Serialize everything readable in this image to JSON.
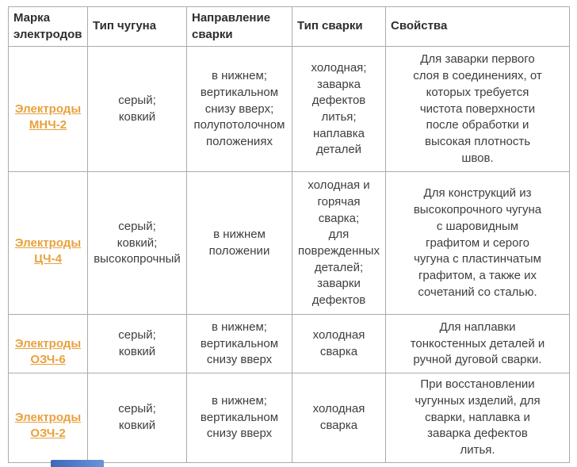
{
  "table": {
    "headers": [
      "Марка электродов",
      "Тип чугуна",
      "Направление сварки",
      "Тип сварки",
      "Свойства"
    ],
    "rows": [
      {
        "brand": "Электроды\nМНЧ-2",
        "iron_type": "серый;\nковкий",
        "direction": "в нижнем;\nвертикальном\nснизу вверх;\nполупотолочном\nположениях",
        "welding_type": "холодная;\nзаварка\nдефектов\nлитья;\nнаплавка\nдеталей",
        "properties": "Для заварки первого\nслоя в соединениях, от\nкоторых требуется\nчистота поверхности\nпосле обработки и\nвысокая плотность\nшвов."
      },
      {
        "brand": "Электроды\nЦЧ-4",
        "iron_type": "серый;\nковкий;\nвысокопрочный",
        "direction": "в нижнем\nположении",
        "welding_type": "холодная и\nгорячая\nсварка;\nдля\nповрежденных\nдеталей;\nзаварки\nдефектов",
        "properties": "Для конструкций из\nвысокопрочного чугуна\nс шаровидным\nграфитом и серого\nчугуна с пластинчатым\nграфитом, а также их\nсочетаний со сталью."
      },
      {
        "brand": "Электроды\nОЗЧ-6",
        "iron_type": "серый;\nковкий",
        "direction": "в нижнем;\nвертикальном\nснизу вверх",
        "welding_type": "холодная\nсварка",
        "properties": "Для наплавки\nтонкостенных деталей и\nручной дуговой сварки."
      },
      {
        "brand": "Электроды\nОЗЧ-2",
        "iron_type": "серый;\nковкий",
        "direction": "в нижнем;\nвертикальном\nснизу вверх",
        "welding_type": "холодная\nсварка",
        "properties": "При восстановлении\nчугунных изделий, для\nсварки, наплавка и\nзаварка дефектов\nлитья."
      }
    ]
  },
  "colors": {
    "link_orange": "#e9a13c",
    "body_text": "#3e3e3e",
    "header_text": "#2e2e2e",
    "border": "#ababab"
  }
}
